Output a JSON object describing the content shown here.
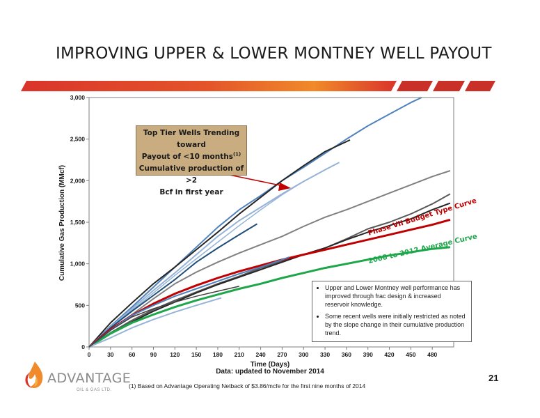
{
  "slide": {
    "title": "IMPROVING UPPER & LOWER MONTNEY WELL PAYOUT",
    "page_number": "21",
    "date_note": "Data: updated to November 2014",
    "footnote": "(1)    Based on Advantage Operating Netback of $3.86/mcfe for the first nine months of 2014",
    "logo_text": "ADVANTAGE",
    "logo_subtext": "OIL & GAS LTD.",
    "colors": {
      "band": "#d9342b",
      "band_gradient_end": "#f08a2a",
      "blue_wells": "#4f81bd",
      "light_blue_wells": "#95b3d7",
      "dark_wells": "#262626",
      "gray_wells": "#808080",
      "phase_vii": "#c00000",
      "avg_2008_2012": "#1ea64b",
      "callout_fill": "#c9ad80"
    }
  },
  "callout": {
    "line1": "Top Tier Wells Trending toward",
    "line2a": "Payout of <10 months",
    "line2_sup": "(1)",
    "line3": "Cumulative production of >2",
    "line4": "Bcf in first year"
  },
  "notes": [
    "Upper and Lower Montney well performance has improved through frac design & increased reservoir knowledge.",
    "Some recent wells were initially restricted as noted by the slope change in their cumulative production trend."
  ],
  "chart_data": {
    "type": "line",
    "xlabel": "Time (Days)",
    "ylabel": "Cumulative Gas Production (MMcf)",
    "xlim": [
      0,
      510
    ],
    "ylim": [
      0,
      3000
    ],
    "x_ticks": [
      0,
      30,
      60,
      90,
      120,
      150,
      180,
      210,
      240,
      270,
      300,
      330,
      360,
      390,
      420,
      450,
      480
    ],
    "y_ticks": [
      0,
      500,
      1000,
      1500,
      2000,
      2500,
      3000
    ],
    "y_tick_labels": [
      "0",
      "500",
      "1,000",
      "1,500",
      "2,000",
      "2,500",
      "3,000"
    ],
    "grid": false,
    "series": [
      {
        "x": [
          0,
          30,
          60,
          90,
          120,
          150,
          180,
          210,
          240,
          270,
          300,
          330,
          360,
          390,
          420,
          450,
          465
        ],
        "y": [
          0,
          250,
          480,
          720,
          960,
          1200,
          1440,
          1650,
          1820,
          2000,
          2160,
          2330,
          2500,
          2660,
          2800,
          2940,
          3000
        ],
        "color": "#4f81bd",
        "width": 2
      },
      {
        "x": [
          0,
          30,
          60,
          90,
          120,
          150,
          180,
          210,
          240,
          270,
          300,
          330,
          365
        ],
        "y": [
          0,
          290,
          530,
          760,
          960,
          1170,
          1380,
          1600,
          1800,
          2000,
          2180,
          2350,
          2490
        ],
        "color": "#262626",
        "width": 2
      },
      {
        "x": [
          0,
          30,
          60,
          90,
          120,
          150,
          180,
          210,
          240,
          270,
          300,
          330,
          350
        ],
        "y": [
          0,
          240,
          460,
          680,
          890,
          1110,
          1330,
          1520,
          1680,
          1840,
          1990,
          2130,
          2220
        ],
        "color": "#95b3d7",
        "width": 2
      },
      {
        "x": [
          0,
          30,
          60,
          90,
          120,
          150,
          180,
          210,
          240,
          270,
          300,
          330,
          345
        ],
        "y": [
          0,
          230,
          440,
          650,
          860,
          1060,
          1260,
          1460,
          1650,
          1830,
          1990,
          2130,
          2200
        ],
        "color": "#95b3d7",
        "width": 1.5
      },
      {
        "x": [
          0,
          30,
          60,
          90,
          120,
          150,
          180,
          210,
          235
        ],
        "y": [
          0,
          230,
          430,
          620,
          810,
          1020,
          1190,
          1350,
          1480
        ],
        "color": "#1f4e79",
        "width": 2
      },
      {
        "x": [
          0,
          30,
          60,
          90,
          120,
          150,
          180,
          210,
          240,
          270,
          300,
          330,
          360,
          390,
          420,
          450,
          480,
          505
        ],
        "y": [
          0,
          200,
          390,
          580,
          760,
          900,
          1020,
          1130,
          1230,
          1330,
          1450,
          1560,
          1650,
          1750,
          1850,
          1950,
          2050,
          2120
        ],
        "color": "#808080",
        "width": 2
      },
      {
        "x": [
          0,
          30,
          60,
          90,
          120,
          150,
          180,
          210,
          240,
          270,
          300,
          330,
          360,
          390,
          420,
          450,
          480,
          505
        ],
        "y": [
          0,
          170,
          320,
          450,
          560,
          660,
          760,
          850,
          950,
          1030,
          1110,
          1190,
          1300,
          1420,
          1500,
          1600,
          1720,
          1840
        ],
        "color": "#595959",
        "width": 2
      },
      {
        "x": [
          0,
          30,
          60,
          90,
          120,
          150,
          180,
          210,
          240,
          270,
          300,
          330,
          360,
          390,
          420,
          450,
          480,
          505
        ],
        "y": [
          0,
          160,
          300,
          430,
          540,
          650,
          750,
          840,
          930,
          1020,
          1110,
          1190,
          1290,
          1380,
          1460,
          1540,
          1650,
          1730
        ],
        "color": "#262626",
        "width": 2
      },
      {
        "x": [
          0,
          30,
          60,
          90,
          120,
          150,
          180,
          210,
          240,
          270,
          300,
          330,
          360,
          390,
          420,
          450,
          480,
          505
        ],
        "y": [
          0,
          210,
          380,
          520,
          640,
          740,
          830,
          910,
          980,
          1050,
          1110,
          1170,
          1230,
          1290,
          1350,
          1410,
          1470,
          1530
        ],
        "color": "#c00000",
        "width": 3
      },
      {
        "x": [
          0,
          30,
          60,
          90,
          120,
          150,
          180,
          210,
          240,
          270,
          300,
          330,
          360,
          390,
          420,
          450,
          480,
          505
        ],
        "y": [
          0,
          160,
          290,
          390,
          480,
          560,
          630,
          700,
          760,
          830,
          890,
          950,
          1000,
          1050,
          1100,
          1140,
          1180,
          1200
        ],
        "color": "#1ea64b",
        "width": 3
      },
      {
        "x": [
          0,
          30,
          60,
          90,
          120,
          150,
          180,
          210,
          240,
          270,
          280
        ],
        "y": [
          0,
          200,
          380,
          500,
          610,
          700,
          790,
          880,
          960,
          1050,
          1080
        ],
        "color": "#4f81bd",
        "width": 2
      },
      {
        "x": [
          0,
          30,
          60,
          90,
          120,
          150,
          185
        ],
        "y": [
          0,
          110,
          230,
          330,
          420,
          500,
          590
        ],
        "color": "#95b3d7",
        "width": 2
      },
      {
        "x": [
          0,
          30,
          60,
          90,
          120,
          150,
          180,
          210
        ],
        "y": [
          0,
          200,
          360,
          460,
          540,
          610,
          670,
          730
        ],
        "color": "#404040",
        "width": 1.5
      }
    ],
    "annotations": [
      {
        "text": "Phase VII Budget Type Curve",
        "color": "#c00000"
      },
      {
        "text": "2008 to  2012 Average Curve",
        "color": "#1ea64b"
      }
    ]
  }
}
